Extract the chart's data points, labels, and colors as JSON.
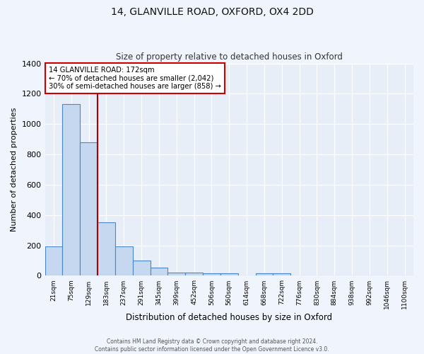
{
  "title_line1": "14, GLANVILLE ROAD, OXFORD, OX4 2DD",
  "title_line2": "Size of property relative to detached houses in Oxford",
  "xlabel": "Distribution of detached houses by size in Oxford",
  "ylabel": "Number of detached properties",
  "categories": [
    "21sqm",
    "75sqm",
    "129sqm",
    "183sqm",
    "237sqm",
    "291sqm",
    "345sqm",
    "399sqm",
    "452sqm",
    "506sqm",
    "560sqm",
    "614sqm",
    "668sqm",
    "722sqm",
    "776sqm",
    "830sqm",
    "884sqm",
    "938sqm",
    "992sqm",
    "1046sqm",
    "1100sqm"
  ],
  "values": [
    195,
    1130,
    880,
    350,
    195,
    100,
    55,
    20,
    20,
    15,
    15,
    0,
    15,
    15,
    0,
    0,
    0,
    0,
    0,
    0,
    0
  ],
  "bar_color": "#c5d8f0",
  "bar_edge_color": "#4a86c8",
  "red_line_color": "#aa0000",
  "annotation_text_line1": "14 GLANVILLE ROAD: 172sqm",
  "annotation_text_line2": "← 70% of detached houses are smaller (2,042)",
  "annotation_text_line3": "30% of semi-detached houses are larger (858) →",
  "annotation_box_facecolor": "#ffffff",
  "annotation_border_color": "#cc0000",
  "ylim": [
    0,
    1400
  ],
  "yticks": [
    0,
    200,
    400,
    600,
    800,
    1000,
    1200,
    1400
  ],
  "background_color": "#e8eef8",
  "grid_color": "#ffffff",
  "fig_facecolor": "#f0f4fc",
  "footer_line1": "Contains HM Land Registry data © Crown copyright and database right 2024.",
  "footer_line2": "Contains public sector information licensed under the Open Government Licence v3.0."
}
